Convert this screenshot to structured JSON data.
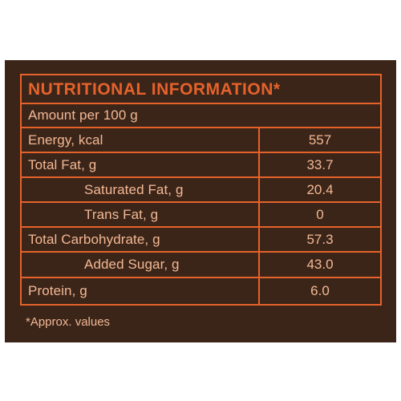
{
  "panel": {
    "title": "NUTRITIONAL INFORMATION*",
    "amount_row": "Amount per 100 g",
    "rows": [
      {
        "label": "Energy, kcal",
        "value": "557",
        "indent": false
      },
      {
        "label": "Total Fat, g",
        "value": "33.7",
        "indent": false
      },
      {
        "label": "Saturated Fat, g",
        "value": "20.4",
        "indent": true
      },
      {
        "label": "Trans Fat, g",
        "value": "0",
        "indent": true
      },
      {
        "label": "Total Carbohydrate, g",
        "value": "57.3",
        "indent": false
      },
      {
        "label": "Added Sugar, g",
        "value": "43.0",
        "indent": true
      },
      {
        "label": "Protein, g",
        "value": "6.0",
        "indent": false
      }
    ],
    "footnote": "*Approx. values"
  },
  "colors": {
    "background": "#3b2519",
    "accent": "#e5622b",
    "text": "#f3b894"
  }
}
